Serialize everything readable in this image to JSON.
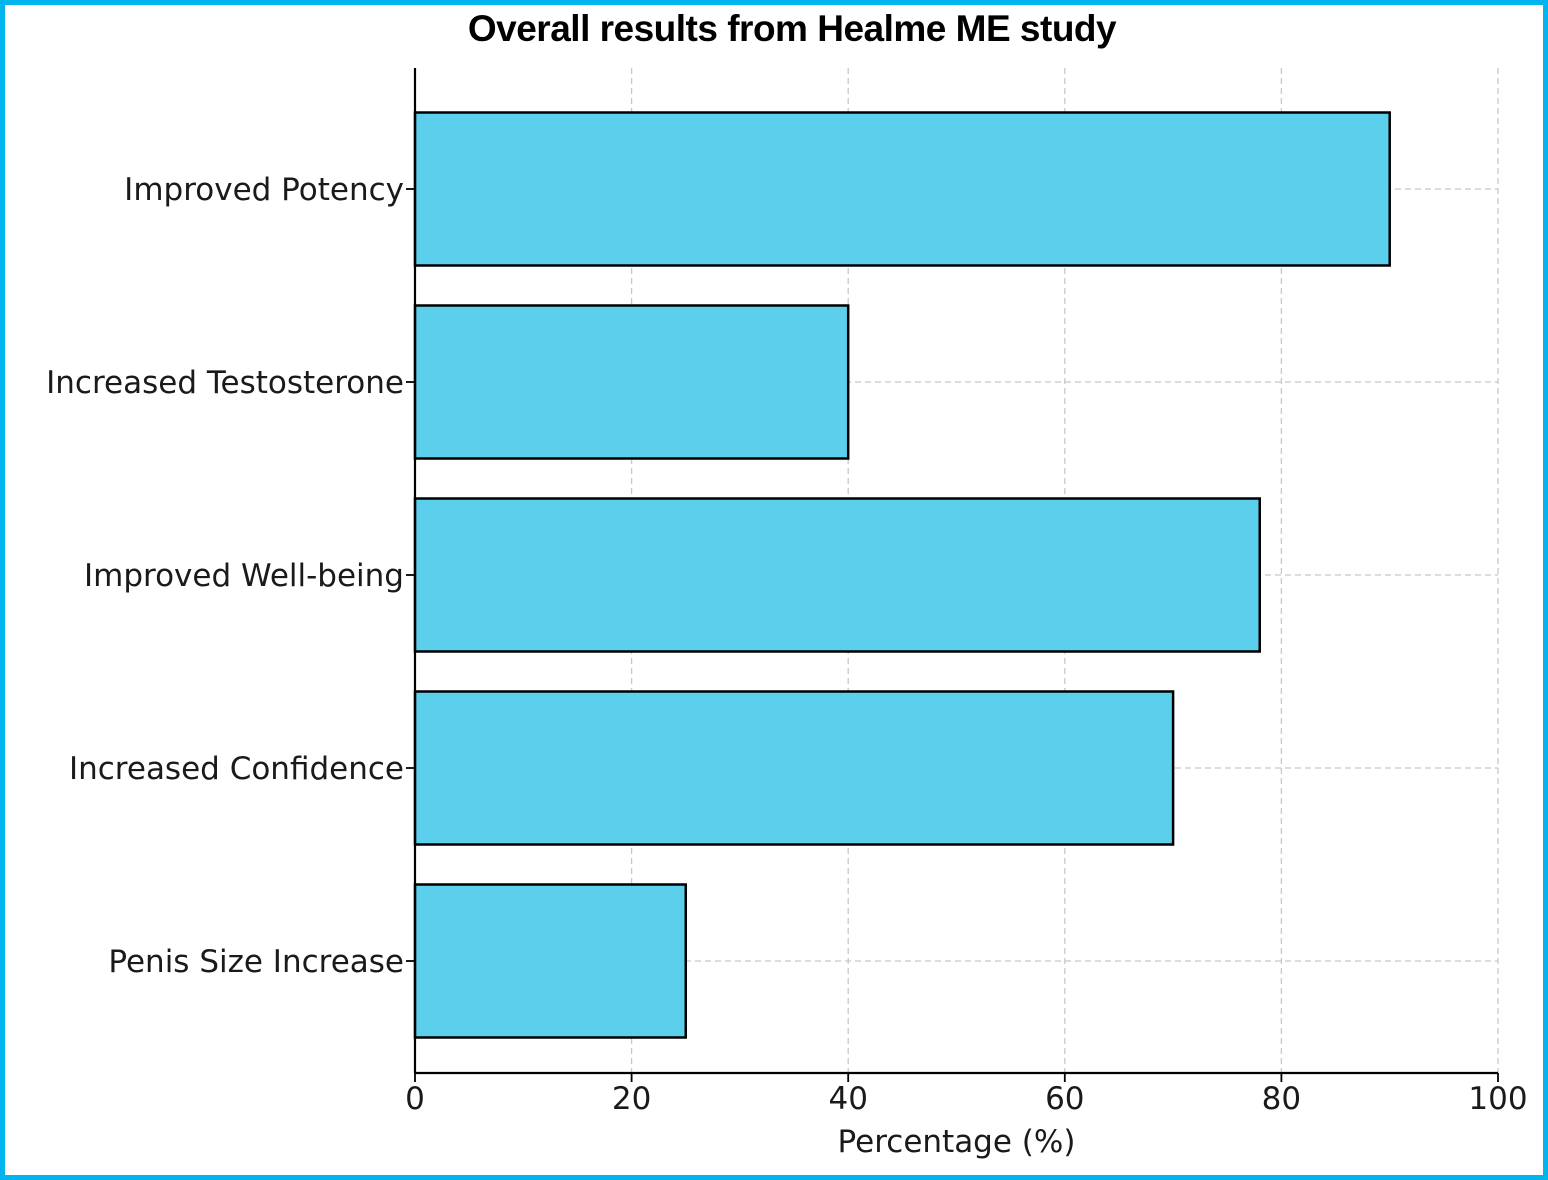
{
  "chart_data": {
    "type": "bar",
    "orientation": "horizontal",
    "title": "Overall results from Healme ME study",
    "categories": [
      "Improved Potency",
      "Increased Testosterone",
      "Improved Well-being",
      "Increased Confidence",
      "Penis Size Increase"
    ],
    "values": [
      90,
      40,
      78,
      70,
      25
    ],
    "xlabel": "Percentage (%)",
    "ylabel": "",
    "xlim": [
      0,
      100
    ],
    "xticks": [
      "0",
      "20",
      "40",
      "60",
      "80",
      "100"
    ],
    "grid": true,
    "bar_color": "#5bcfeb",
    "bar_edge_color": "#000000",
    "frame_color": "#00b4ee"
  }
}
